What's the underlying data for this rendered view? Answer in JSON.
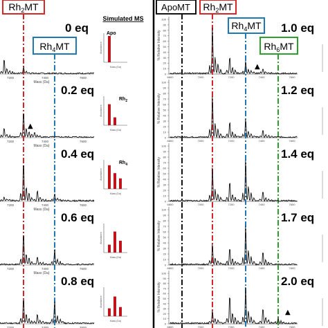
{
  "chart_data": [
    {
      "type": "line",
      "panel": "left",
      "header_labels": [
        "Rh2MT",
        "Rh4MT"
      ],
      "label_colors": [
        "#d62728",
        "#1f77b4"
      ],
      "column_title": "Simulated MS",
      "xlabel": "Mass (Da)",
      "x_ticks": [
        "7200",
        "7400",
        "7600"
      ],
      "equivalents": [
        "0 eq",
        "0.2 eq",
        "0.4 eq",
        "0.6 eq",
        "0.8 eq"
      ],
      "inset_labels": [
        "Apo",
        "Rh2",
        "Rh4",
        "",
        ""
      ],
      "inset_xlabel": "Mass (Da)",
      "inset_ylabel": "Abundance",
      "inset_bars": [
        [
          1.0
        ],
        [
          0.8,
          0.3
        ],
        [
          0.9,
          0.6,
          0.4
        ],
        [
          0.3,
          0.8,
          0.45
        ],
        [
          0.3,
          0.75,
          0.35
        ]
      ],
      "markers": [
        "",
        "▲",
        "",
        "",
        ""
      ]
    },
    {
      "type": "line",
      "panel": "right",
      "header_labels": [
        "ApoMT",
        "Rh2MT",
        "Rh4MT",
        "Rh6MT"
      ],
      "label_colors": [
        "#111111",
        "#d62728",
        "#1f77b4",
        "#2ca02c"
      ],
      "ylabel": "% Relative Intensity",
      "y_ticks": [
        "0",
        "10",
        "20",
        "30",
        "40",
        "50",
        "60",
        "70",
        "80",
        "90",
        "100"
      ],
      "x_ticks": [
        "6800",
        "7000",
        "7200",
        "7400",
        "7600"
      ],
      "equivalents": [
        "1.0 eq",
        "1.2 eq",
        "1.4 eq",
        "1.7 eq",
        "2.0 eq"
      ],
      "markers": [
        "▲",
        "",
        "",
        "",
        "▲"
      ]
    }
  ],
  "colors": {
    "red": "#d62728",
    "blue": "#1f77b4",
    "green": "#2ca02c",
    "black": "#111111",
    "bar": "#c0141c"
  }
}
